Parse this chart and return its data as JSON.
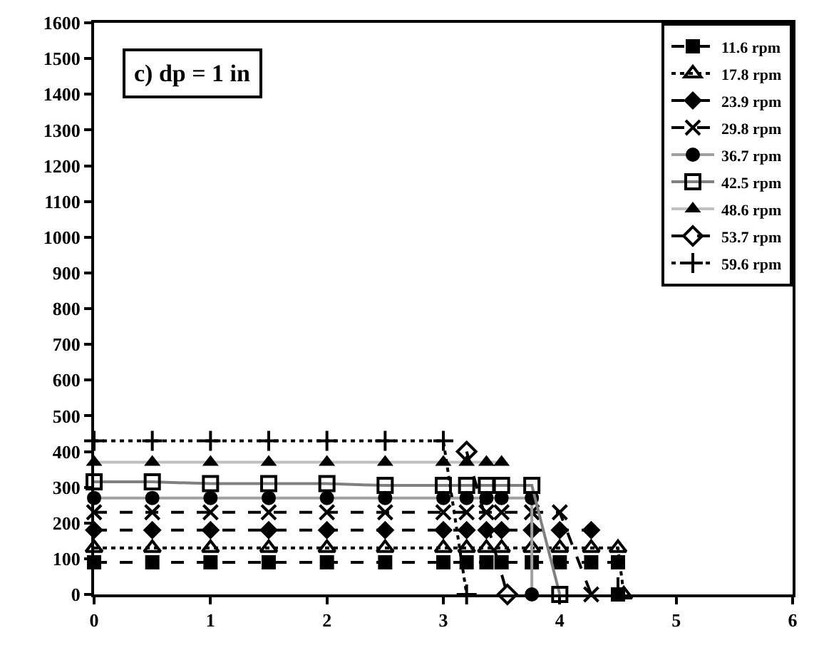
{
  "chart_data": {
    "type": "line",
    "annotations": [
      "c) dp = 1 in"
    ],
    "xlim": [
      0,
      6
    ],
    "xticks": [
      0,
      1,
      2,
      3,
      4,
      5,
      6
    ],
    "ylim": [
      0,
      1600
    ],
    "yticks": [
      0,
      100,
      200,
      300,
      400,
      500,
      600,
      700,
      800,
      900,
      1000,
      1100,
      1200,
      1300,
      1400,
      1500,
      1600
    ],
    "grid": false,
    "legend": "top right",
    "series": [
      {
        "name": "11.6 rpm",
        "color": "#000000",
        "line_style": "dashed",
        "marker": "square",
        "x": [
          0,
          0.5,
          1,
          1.5,
          2,
          2.5,
          3,
          3.2,
          3.37,
          3.5,
          3.76,
          4,
          4.27,
          4.5,
          4.5
        ],
        "values": [
          90,
          90,
          90,
          90,
          90,
          90,
          90,
          90,
          90,
          90,
          90,
          90,
          90,
          90,
          0
        ]
      },
      {
        "name": "17.8 rpm",
        "color": "#000000",
        "line_style": "dotted",
        "marker": "triangle-open",
        "x": [
          0,
          0.5,
          1,
          1.5,
          2,
          2.5,
          3,
          3.2,
          3.37,
          3.5,
          3.76,
          4,
          4.27,
          4.5,
          4.55
        ],
        "values": [
          130,
          130,
          130,
          130,
          130,
          130,
          130,
          130,
          130,
          130,
          130,
          130,
          130,
          130,
          0
        ]
      },
      {
        "name": "23.9 rpm",
        "color": "#000000",
        "line_style": "dashed",
        "marker": "diamond",
        "x": [
          0,
          0.5,
          1,
          1.5,
          2,
          2.5,
          3,
          3.2,
          3.37,
          3.5,
          3.76,
          4,
          4.27
        ],
        "values": [
          180,
          180,
          180,
          180,
          180,
          180,
          180,
          180,
          180,
          180,
          180,
          180,
          180
        ]
      },
      {
        "name": "29.8 rpm",
        "color": "#000000",
        "line_style": "dashed",
        "marker": "x",
        "x": [
          0,
          0.5,
          1,
          1.5,
          2,
          2.5,
          3,
          3.2,
          3.37,
          3.5,
          3.76,
          4,
          4.27
        ],
        "values": [
          230,
          230,
          230,
          230,
          230,
          230,
          230,
          230,
          230,
          230,
          230,
          230,
          0
        ]
      },
      {
        "name": "36.7 rpm",
        "color": "#a0a0a0",
        "line_style": "solid",
        "marker": "circle",
        "x": [
          0,
          0.5,
          1,
          1.5,
          2,
          2.5,
          3,
          3.2,
          3.37,
          3.5,
          3.76,
          3.76
        ],
        "values": [
          270,
          270,
          270,
          270,
          270,
          270,
          270,
          270,
          270,
          270,
          270,
          0
        ]
      },
      {
        "name": "42.5 rpm",
        "color": "#808080",
        "line_style": "solid",
        "marker": "square-open",
        "x": [
          0,
          0.5,
          1,
          1.5,
          2,
          2.5,
          3,
          3.2,
          3.37,
          3.5,
          3.76,
          4
        ],
        "values": [
          315,
          315,
          310,
          310,
          310,
          305,
          305,
          305,
          305,
          305,
          305,
          0
        ]
      },
      {
        "name": "48.6 rpm",
        "color": "#c0c0c0",
        "line_style": "solid",
        "marker": "triangle",
        "x": [
          0,
          0.5,
          1,
          1.5,
          2,
          2.5,
          3,
          3.2,
          3.37,
          3.5
        ],
        "values": [
          370,
          370,
          370,
          370,
          370,
          370,
          370,
          370,
          370,
          370
        ]
      },
      {
        "name": "53.7 rpm",
        "color": "#000000",
        "line_style": "dashed",
        "marker": "diamond-open",
        "x": [
          3.2,
          3.55
        ],
        "values": [
          400,
          0
        ]
      },
      {
        "name": "59.6 rpm",
        "color": "#000000",
        "line_style": "dotted",
        "marker": "cross",
        "x": [
          0,
          0.5,
          1,
          1.5,
          2,
          2.5,
          3,
          3.2
        ],
        "values": [
          430,
          430,
          430,
          430,
          430,
          430,
          430,
          0
        ]
      }
    ]
  }
}
